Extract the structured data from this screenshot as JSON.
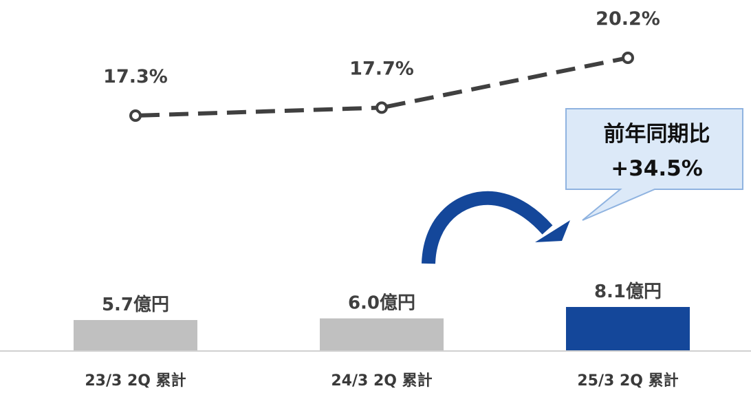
{
  "chart_data": {
    "type": "bar",
    "categories": [
      "23/3 2Q 累計",
      "24/3 2Q 累計",
      "25/3 2Q 累計"
    ],
    "series": [
      {
        "type": "bar",
        "values": [
          5.7,
          6.0,
          8.1
        ],
        "labels": [
          "5.7億円",
          "6.0億円",
          "8.1億円"
        ],
        "colors": [
          "#c0c0c0",
          "#c0c0c0",
          "#14479a"
        ]
      },
      {
        "type": "line",
        "style": "dashed",
        "values": [
          17.3,
          17.7,
          20.2
        ],
        "labels": [
          "17.3%",
          "17.7%",
          "20.2%"
        ],
        "color": "#404040"
      }
    ],
    "annotation": {
      "lines": [
        "前年同期比",
        "+34.5%"
      ],
      "arrow_color": "#14479a",
      "box_fill": "#dce9f8",
      "box_border": "#8fb3e0"
    },
    "title": "",
    "xlabel": "",
    "ylabel": "",
    "grid": false,
    "legend": "none"
  }
}
